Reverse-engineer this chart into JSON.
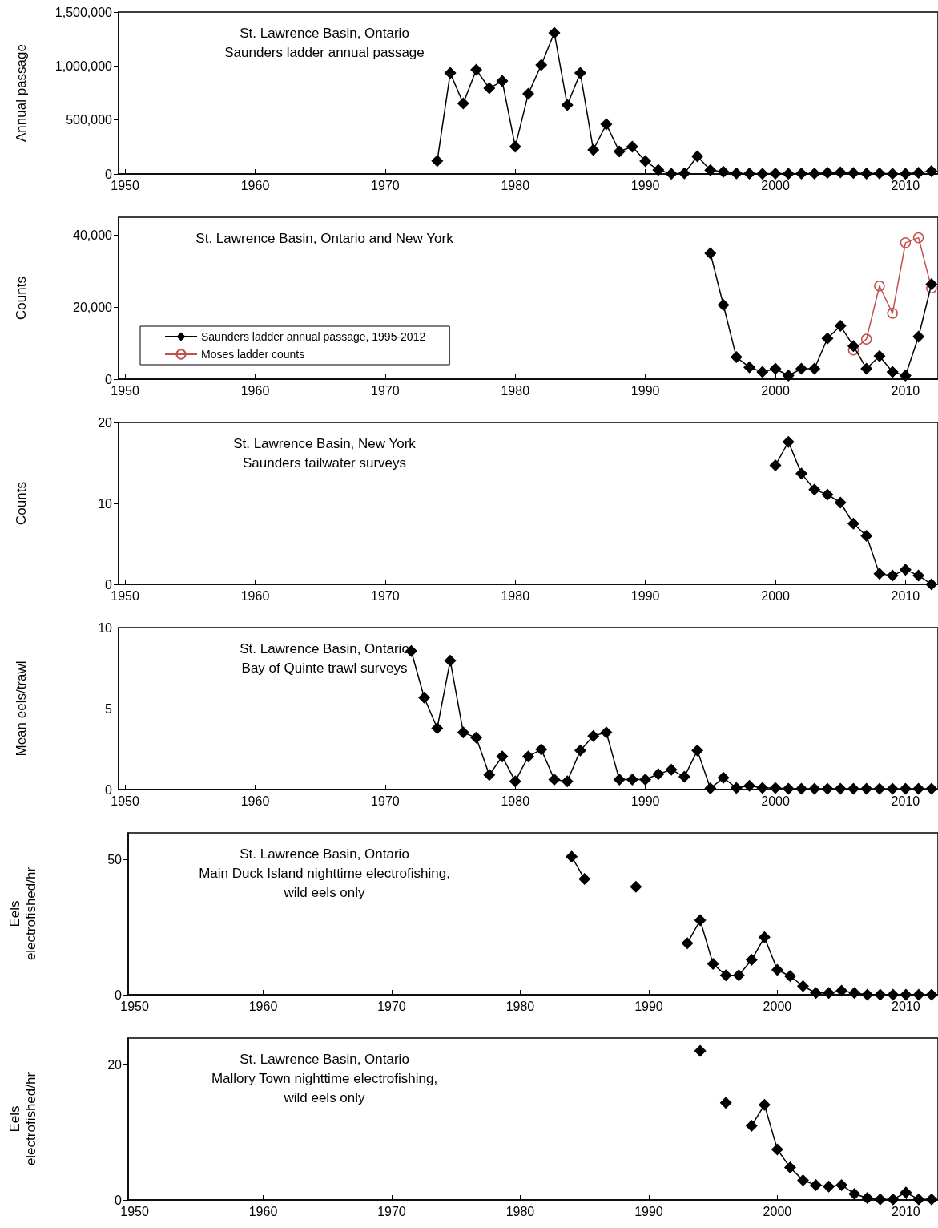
{
  "chart_data": [
    {
      "type": "line",
      "title": "St. Lawrence Basin, Ontario\nSaunders ladder annual passage",
      "ylabel": "Annual passage",
      "marker": "diamond",
      "legend": false,
      "grid": false,
      "x": [
        1974,
        1975,
        1976,
        1977,
        1978,
        1979,
        1980,
        1981,
        1982,
        1983,
        1984,
        1985,
        1986,
        1987,
        1988,
        1989,
        1990,
        1991,
        1992,
        1993,
        1994,
        1995,
        1996,
        1997,
        1998,
        1999,
        2000,
        2001,
        2002,
        2003,
        2004,
        2005,
        2006,
        2007,
        2008,
        2009,
        2010,
        2011,
        2012
      ],
      "series": [
        {
          "color": "#000000",
          "values": [
            120000,
            935000,
            653000,
            965000,
            794000,
            861000,
            252000,
            742000,
            1010000,
            1307000,
            638000,
            935000,
            223000,
            460000,
            208000,
            252000,
            119000,
            37000,
            2000,
            5000,
            163000,
            35000,
            20600,
            6100,
            3300,
            2000,
            2900,
            1000,
            2900,
            2900,
            11300,
            14800,
            9200,
            2900,
            6400,
            2000,
            1000,
            11800,
            26400
          ]
        }
      ],
      "xlim": [
        1949.5,
        2012.5
      ],
      "xticks": [
        1950,
        1960,
        1970,
        1980,
        1990,
        2000,
        2010
      ],
      "ylim": [
        0,
        1500000
      ],
      "yticks": [
        0,
        {
          "value": 500000,
          "label": "500,000"
        },
        {
          "value": 1000000,
          "label": "1,000,000"
        },
        {
          "value": 1500000,
          "label": "1,500,000"
        }
      ]
    },
    {
      "type": "line",
      "title": "St. Lawrence Basin, Ontario and New York",
      "ylabel": "Counts",
      "marker": "diamond",
      "legend": "bottom left",
      "grid": false,
      "x": [
        1995,
        1996,
        1997,
        1998,
        1999,
        2000,
        2001,
        2002,
        2003,
        2004,
        2005,
        2006,
        2007,
        2008,
        2009,
        2010,
        2011,
        2012
      ],
      "series": [
        {
          "name": "Saunders ladder annual passage, 1995-2012",
          "color": "#000000",
          "values": [
            35000,
            20600,
            6100,
            3300,
            2000,
            2900,
            1000,
            2900,
            2900,
            11300,
            14800,
            9200,
            2900,
            6400,
            2000,
            1000,
            11800,
            26400
          ]
        },
        {
          "name": "Moses ladder counts",
          "color": "#c0504d",
          "marker": "circle",
          "x": [
            2006,
            2007,
            2008,
            2009,
            2010,
            2011,
            2012
          ],
          "values": [
            8100,
            11100,
            25900,
            18300,
            37900,
            39300,
            25300
          ]
        }
      ],
      "xlim": [
        1949.5,
        2012.5
      ],
      "xticks": [
        1950,
        1960,
        1970,
        1980,
        1990,
        2000,
        2010
      ],
      "ylim": [
        0,
        45000
      ],
      "yticks": [
        0,
        {
          "value": 20000,
          "label": "20,000"
        },
        {
          "value": 40000,
          "label": "40,000"
        }
      ]
    },
    {
      "type": "line",
      "title": "St. Lawrence Basin, New York\nSaunders tailwater surveys",
      "ylabel": "Counts",
      "marker": "diamond",
      "legend": false,
      "grid": false,
      "x": [
        2000,
        2001,
        2002,
        2003,
        2004,
        2005,
        2006,
        2007,
        2008,
        2009,
        2010,
        2011,
        2012
      ],
      "series": [
        {
          "color": "#000000",
          "values": [
            14.7,
            17.6,
            13.7,
            11.7,
            11.1,
            10.1,
            7.5,
            6.0,
            1.3,
            1.1,
            1.8,
            1.1,
            0
          ]
        }
      ],
      "xlim": [
        1949.5,
        2012.5
      ],
      "xticks": [
        1950,
        1960,
        1970,
        1980,
        1990,
        2000,
        2010
      ],
      "ylim": [
        0,
        20
      ],
      "yticks": [
        0,
        10,
        20
      ]
    },
    {
      "type": "line",
      "title": "St. Lawrence Basin, Ontario\nBay of Quinte trawl surveys",
      "ylabel": "Mean eels/trawl",
      "marker": "diamond",
      "legend": false,
      "grid": false,
      "x": [
        1972,
        1973,
        1974,
        1975,
        1976,
        1977,
        1978,
        1979,
        1980,
        1981,
        1982,
        1983,
        1984,
        1985,
        1986,
        1987,
        1988,
        1989,
        1990,
        1991,
        1992,
        1993,
        1994,
        1995,
        1996,
        1997,
        1998,
        1999,
        2000,
        2001,
        2002,
        2003,
        2004,
        2005,
        2006,
        2007,
        2008,
        2009,
        2010,
        2011,
        2012
      ],
      "series": [
        {
          "color": "#000000",
          "values": [
            8.55,
            5.68,
            3.79,
            7.96,
            3.53,
            3.2,
            0.9,
            2.04,
            0.51,
            2.04,
            2.48,
            0.62,
            0.51,
            2.41,
            3.31,
            3.53,
            0.62,
            0.62,
            0.62,
            0.95,
            1.23,
            0.79,
            2.41,
            0.07,
            0.73,
            0.1,
            0.24,
            0.1,
            0.1,
            0.05,
            0.05,
            0.05,
            0.05,
            0.05,
            0.05,
            0.05,
            0.05,
            0.05,
            0.05,
            0.05,
            0.05
          ]
        }
      ],
      "xlim": [
        1949.5,
        2012.5
      ],
      "xticks": [
        1950,
        1960,
        1970,
        1980,
        1990,
        2000,
        2010
      ],
      "ylim": [
        0,
        10
      ],
      "yticks": [
        0,
        5,
        10
      ]
    },
    {
      "type": "line",
      "title": "St. Lawrence Basin, Ontario\nMain Duck Island nighttime electrofishing,\nwild eels only",
      "ylabel": "Eels\nelectrofished/hr",
      "marker": "diamond",
      "legend": false,
      "grid": false,
      "x": [
        1984,
        1985,
        1986,
        1987,
        1988,
        1989,
        1990,
        1991,
        1992,
        1993,
        1994,
        1995,
        1996,
        1997,
        1998,
        1999,
        2000,
        2001,
        2002,
        2003,
        2004,
        2005,
        2006,
        2007,
        2008,
        2009,
        2010,
        2011,
        2012
      ],
      "series": [
        {
          "color": "#000000",
          "values": [
            51.2,
            42.9,
            null,
            null,
            null,
            40.0,
            null,
            null,
            null,
            19.1,
            27.6,
            11.4,
            7.2,
            7.2,
            12.9,
            21.3,
            9.2,
            6.9,
            3.2,
            0.7,
            0.7,
            1.5,
            0.7,
            0,
            0,
            0,
            0,
            0,
            0
          ]
        }
      ],
      "xlim": [
        1949.5,
        2012.5
      ],
      "xticks": [
        1950,
        1960,
        1970,
        1980,
        1990,
        2000,
        2010
      ],
      "ylim": [
        0,
        60
      ],
      "yticks": [
        0,
        50
      ]
    },
    {
      "type": "line",
      "title": "St. Lawrence Basin, Ontario\nMallory Town nighttime electrofishing,\nwild eels only",
      "ylabel": "Eels\nelectrofished/hr",
      "marker": "diamond",
      "legend": false,
      "grid": false,
      "x": [
        1994,
        1995,
        1996,
        1997,
        1998,
        1999,
        2000,
        2001,
        2002,
        2003,
        2004,
        2005,
        2006,
        2007,
        2008,
        2009,
        2010,
        2011,
        2012
      ],
      "series": [
        {
          "color": "#000000",
          "values": [
            22.1,
            null,
            14.4,
            null,
            11.0,
            14.1,
            7.5,
            4.8,
            2.9,
            2.2,
            2.0,
            2.2,
            0.9,
            0.3,
            0.1,
            0.1,
            1.1,
            0.1,
            0.1
          ]
        }
      ],
      "xlim": [
        1949.5,
        2012.5
      ],
      "xticks": [
        1950,
        1960,
        1970,
        1980,
        1990,
        2000,
        2010
      ],
      "ylim": [
        0,
        24
      ],
      "yticks": [
        0,
        20
      ]
    }
  ]
}
